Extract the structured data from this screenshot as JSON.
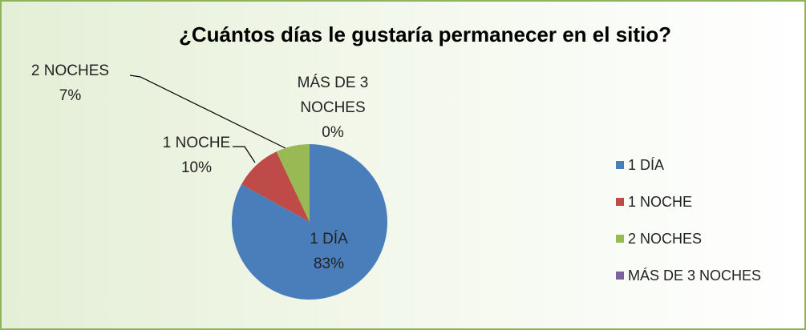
{
  "chart_data": {
    "type": "pie",
    "title": "¿Cuántos días le gustaría permanecer en el sitio?",
    "categories": [
      "1 DÍA",
      "1 NOCHE",
      "2 NOCHES",
      "MÁS DE 3 NOCHES"
    ],
    "values": [
      83,
      10,
      7,
      0
    ],
    "value_labels": [
      "83%",
      "10%",
      "7%",
      "0%"
    ],
    "colors": [
      "#4a7ebb",
      "#be4b48",
      "#98b954",
      "#7d60a0"
    ],
    "legend": "right"
  }
}
